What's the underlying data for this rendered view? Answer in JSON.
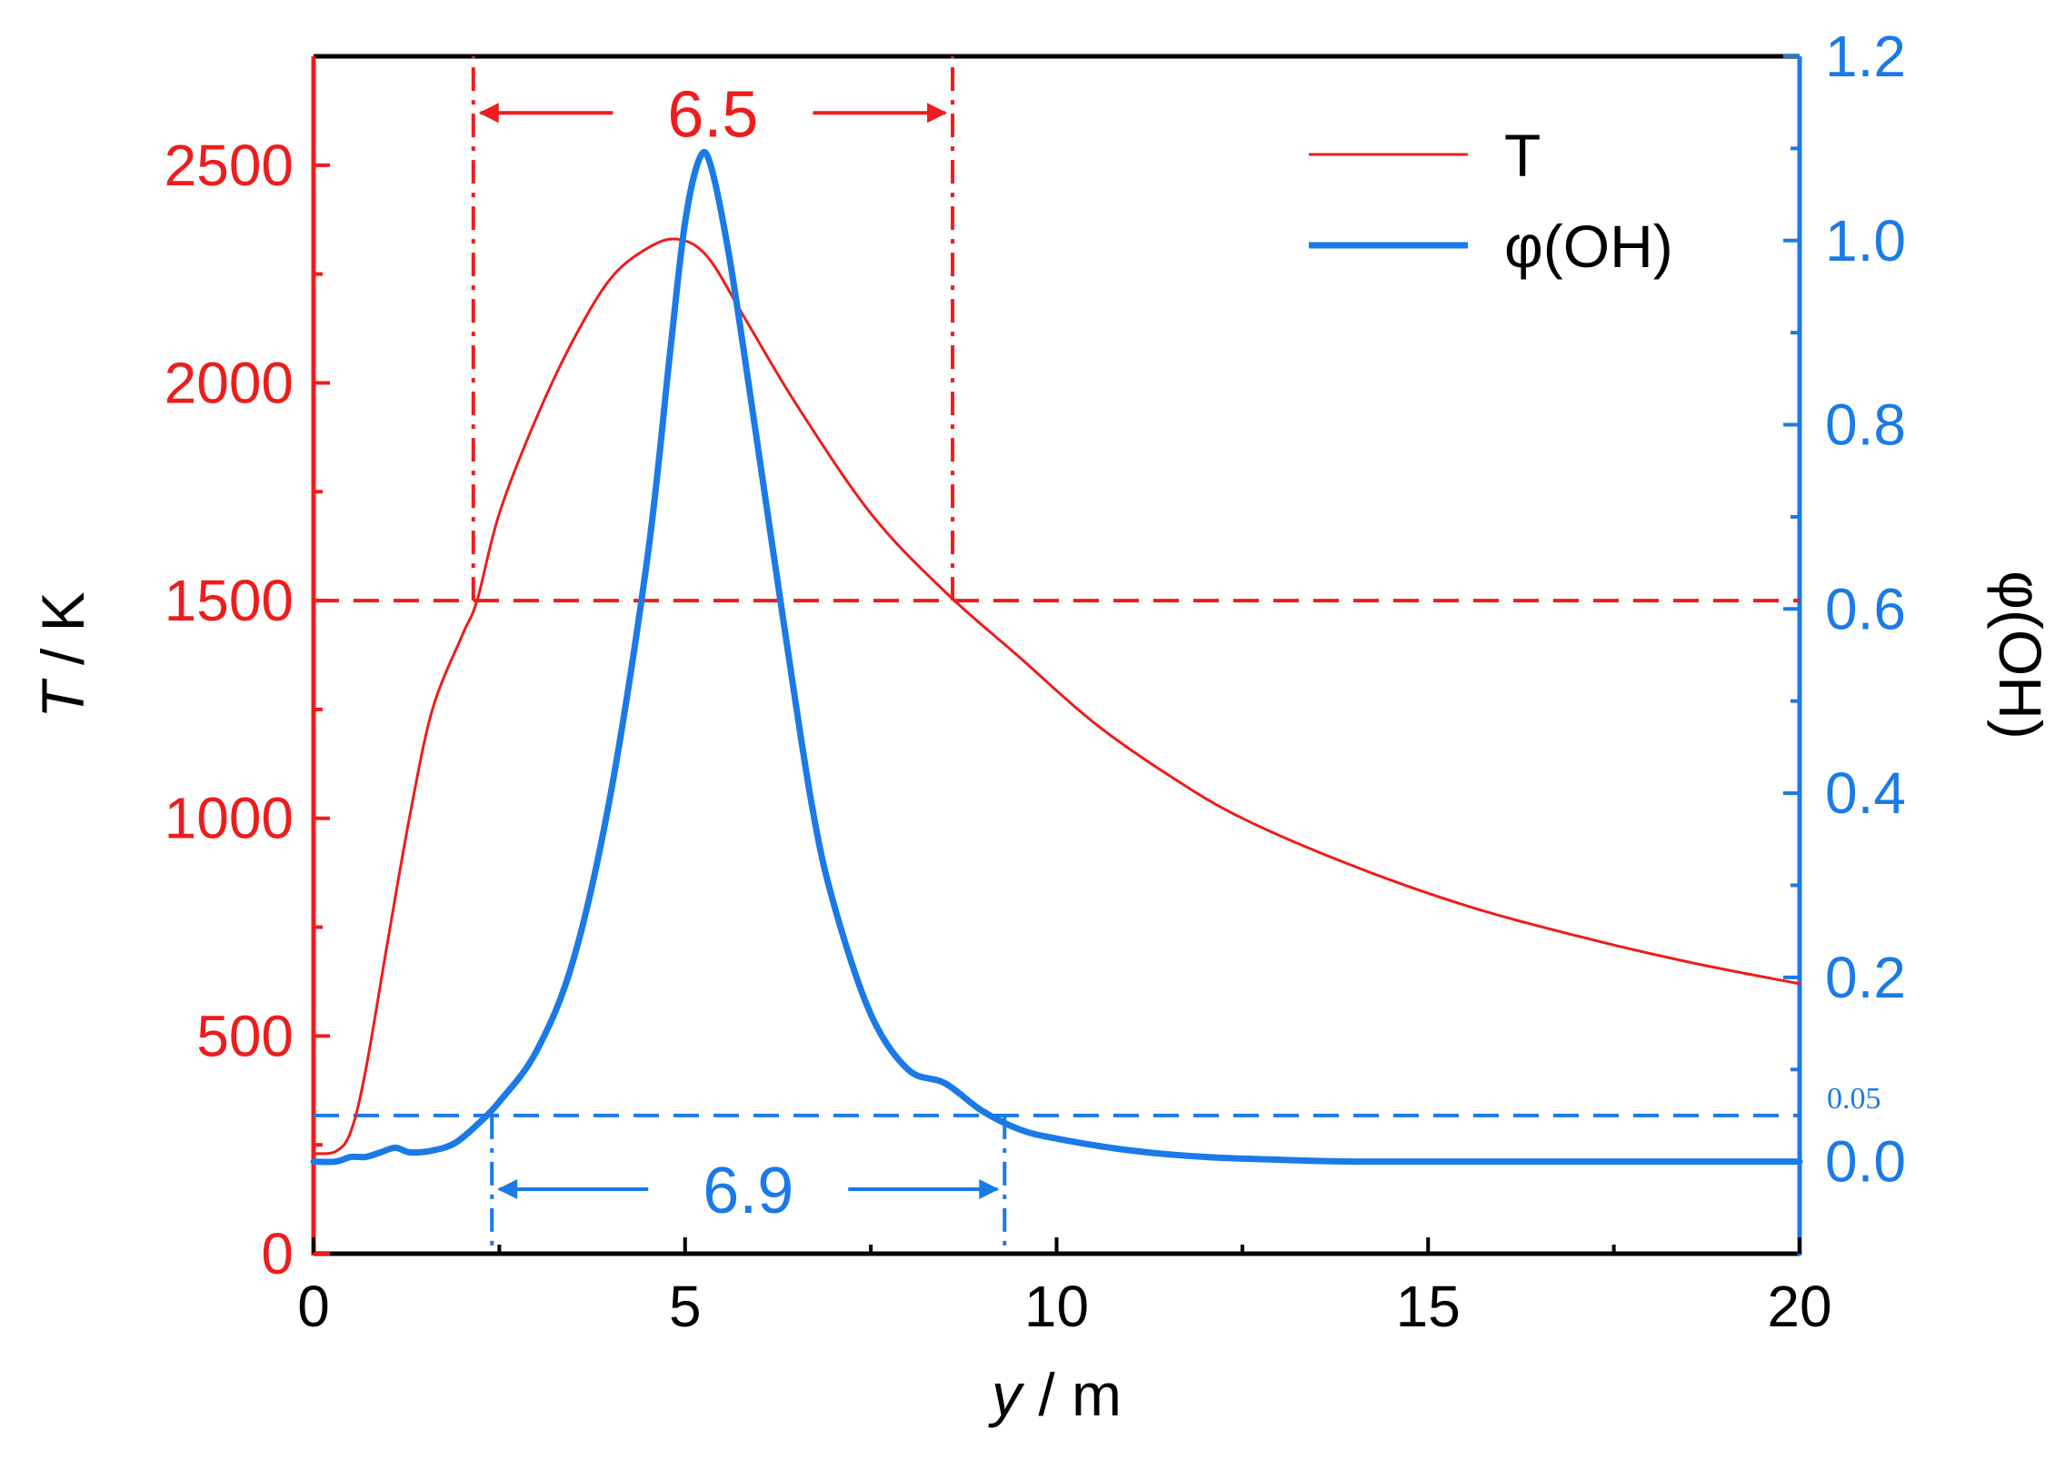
{
  "colors": {
    "temperature": "#ee1c1c",
    "oh": "#1a7ae8",
    "frame": "#000000"
  },
  "chart_data": {
    "type": "line",
    "x_axis": {
      "label_var": "y",
      "label_unit": " / m",
      "range": [
        0,
        20
      ],
      "ticks": [
        0,
        5,
        10,
        15,
        20
      ],
      "tick_labels": [
        "0",
        "5",
        "10",
        "15",
        "20"
      ],
      "minor_ticks": [
        2.5,
        7.5,
        12.5,
        17.5
      ]
    },
    "y_left": {
      "label_var": "T",
      "label_unit": " / K",
      "range": [
        0,
        2750
      ],
      "ticks": [
        0,
        500,
        1000,
        1500,
        2000,
        2500
      ],
      "tick_labels": [
        "0",
        "500",
        "1000",
        "1500",
        "2000",
        "2500"
      ],
      "minor_ticks": [
        250,
        750,
        1250,
        1750,
        2250
      ]
    },
    "y_right": {
      "label": "φ(OH)",
      "range": [
        -0.1,
        1.2
      ],
      "ticks": [
        0.0,
        0.2,
        0.4,
        0.6,
        0.8,
        1.0,
        1.2
      ],
      "tick_labels": [
        "0.0",
        "0.2",
        "0.4",
        "0.6",
        "0.8",
        "1.0",
        "1.2"
      ],
      "minor_ticks": [
        0.1,
        0.3,
        0.5,
        0.7,
        0.9,
        1.1
      ],
      "extra_tick": {
        "value": 0.05,
        "label": "0.05"
      }
    },
    "series": [
      {
        "name": "T",
        "axis": "left",
        "x": [
          0,
          0.3,
          0.5,
          0.7,
          1.0,
          1.3,
          1.6,
          2.0,
          2.2,
          2.5,
          3.0,
          3.5,
          4.0,
          4.5,
          4.9,
          5.3,
          5.8,
          6.5,
          7.5,
          8.5,
          9.5,
          10.5,
          11.5,
          12.5,
          14.0,
          15.5,
          17.0,
          18.5,
          20.0
        ],
        "y": [
          230,
          235,
          280,
          420,
          720,
          1010,
          1250,
          1420,
          1500,
          1700,
          1920,
          2100,
          2240,
          2310,
          2330,
          2290,
          2150,
          1950,
          1700,
          1520,
          1370,
          1220,
          1100,
          1000,
          890,
          800,
          730,
          670,
          620
        ],
        "width": 3
      },
      {
        "name": "φ(OH)",
        "axis": "right",
        "x": [
          0,
          0.3,
          0.5,
          0.7,
          0.9,
          1.1,
          1.3,
          1.6,
          1.9,
          2.2,
          2.5,
          3.0,
          3.5,
          4.0,
          4.5,
          4.8,
          5.0,
          5.2,
          5.35,
          5.6,
          5.9,
          6.3,
          6.7,
          7.0,
          7.5,
          8.0,
          8.5,
          9.0,
          9.5,
          10.0,
          11.0,
          12.0,
          13.0,
          14.0,
          16.0,
          20.0
        ],
        "y": [
          0,
          0,
          0.005,
          0.005,
          0.01,
          0.015,
          0.01,
          0.012,
          0.02,
          0.04,
          0.065,
          0.12,
          0.22,
          0.4,
          0.66,
          0.88,
          1.02,
          1.09,
          1.08,
          0.98,
          0.82,
          0.6,
          0.39,
          0.28,
          0.16,
          0.1,
          0.085,
          0.055,
          0.035,
          0.025,
          0.012,
          0.005,
          0.002,
          0.0,
          0.0,
          0.0
        ],
        "width": 7
      }
    ],
    "reference_lines": [
      {
        "id": "t-threshold",
        "axis": "left",
        "orientation": "horizontal",
        "value": 1500,
        "style": "dashed"
      },
      {
        "id": "oh-threshold",
        "axis": "right",
        "orientation": "horizontal",
        "value": 0.05,
        "style": "dashed"
      },
      {
        "id": "t-start",
        "axis": "left",
        "orientation": "vertical",
        "x": 2.15,
        "from": 1500,
        "to": 2750,
        "style": "dashdot"
      },
      {
        "id": "t-end",
        "axis": "left",
        "orientation": "vertical",
        "x": 8.6,
        "from": 1500,
        "to": 2750,
        "style": "dashdot"
      },
      {
        "id": "oh-start",
        "axis": "right",
        "orientation": "vertical",
        "x": 2.4,
        "from": 0.05,
        "to": -0.1,
        "style": "dashdot"
      },
      {
        "id": "oh-end",
        "axis": "right",
        "orientation": "vertical",
        "x": 9.3,
        "from": 0.05,
        "to": -0.1,
        "style": "dashdot"
      }
    ],
    "annotations": [
      {
        "id": "t-width",
        "label": "6.5",
        "axis": "left",
        "x1": 2.15,
        "x2": 8.6,
        "y": 2620
      },
      {
        "id": "oh-width",
        "label": "6.9",
        "axis": "right",
        "x1": 2.4,
        "x2": 9.3,
        "y": -0.03
      }
    ],
    "legend": {
      "placement": "top-right",
      "entries": [
        "T",
        "φ(OH)"
      ]
    },
    "grid": false
  }
}
